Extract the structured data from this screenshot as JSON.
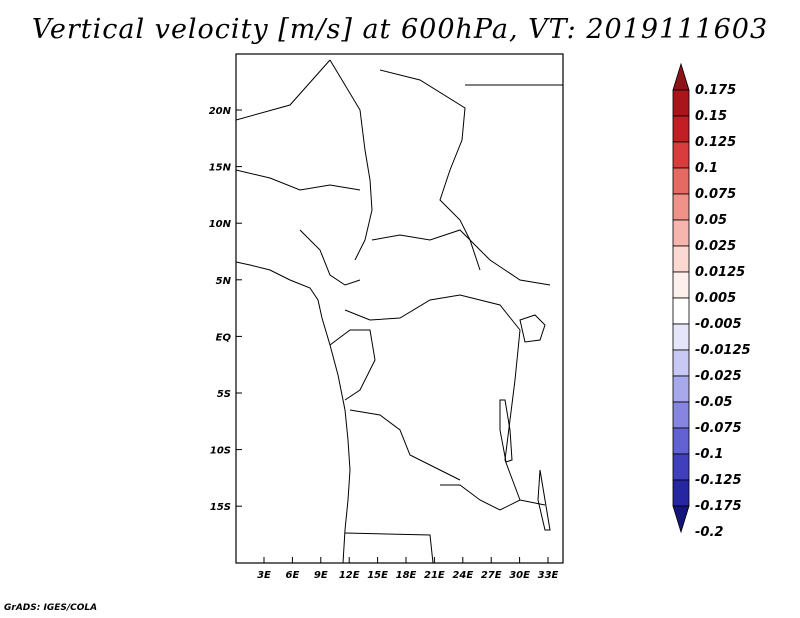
{
  "title": "Vertical velocity [m/s] at 600hPa, VT: 2019111603",
  "credit": "GrADS: IGES/COLA",
  "map": {
    "lat_labels": [
      "20N",
      "15N",
      "10N",
      "5N",
      "EQ",
      "5S",
      "10S",
      "15S"
    ],
    "lon_labels": [
      "3E",
      "6E",
      "9E",
      "12E",
      "15E",
      "18E",
      "21E",
      "24E",
      "27E",
      "30E",
      "33E"
    ]
  },
  "colorbar": {
    "labels": [
      "0.175",
      "0.15",
      "0.125",
      "0.1",
      "0.075",
      "0.05",
      "0.025",
      "0.0125",
      "0.005",
      "-0.005",
      "-0.0125",
      "-0.025",
      "-0.05",
      "-0.075",
      "-0.1",
      "-0.125",
      "-0.175",
      "-0.2"
    ],
    "colors": [
      "#8c1418",
      "#a8161b",
      "#c21e24",
      "#d83c3c",
      "#e46a62",
      "#ee928a",
      "#f6b6ae",
      "#fbd8d2",
      "#fdf0ec",
      "#ffffff",
      "#e6e6fb",
      "#c8c8f4",
      "#a8a8ec",
      "#8686e0",
      "#6262d2",
      "#4040bc",
      "#2626a0",
      "#14147a"
    ]
  }
}
